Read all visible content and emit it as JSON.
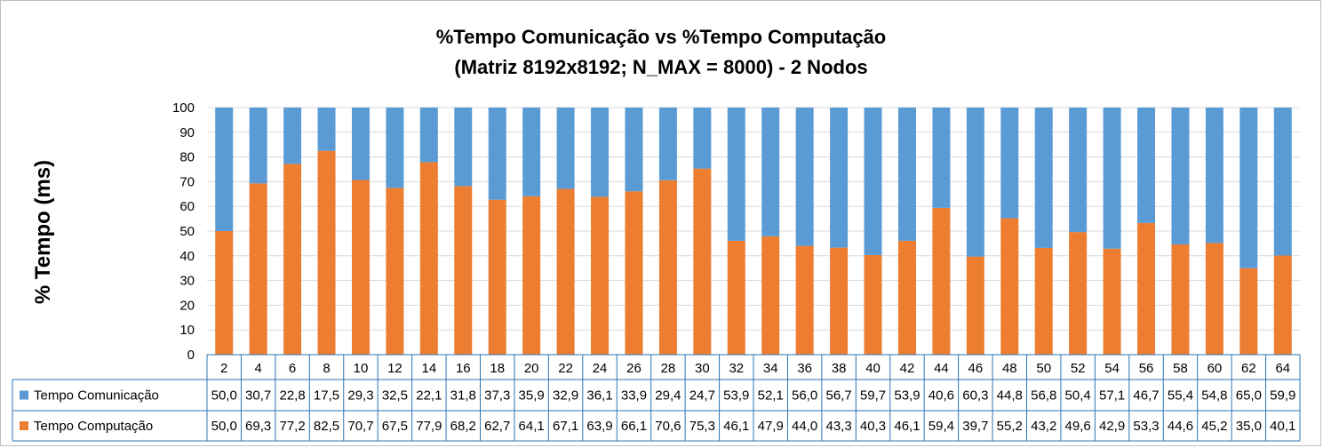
{
  "chart_data": {
    "type": "bar",
    "stacked": true,
    "title_line1": "%Tempo Comunicação vs %Tempo Computação",
    "title_line2": "(Matriz 8192x8192; N_MAX = 8000) - 2 Nodos",
    "ylabel": "% Tempo (ms)",
    "ylim": [
      0,
      100
    ],
    "yticks": [
      0,
      10,
      20,
      30,
      40,
      50,
      60,
      70,
      80,
      90,
      100
    ],
    "grid": true,
    "legend_placement": "data-table",
    "categories": [
      "2",
      "4",
      "6",
      "8",
      "10",
      "12",
      "14",
      "16",
      "18",
      "20",
      "22",
      "24",
      "26",
      "28",
      "30",
      "32",
      "34",
      "36",
      "38",
      "40",
      "42",
      "44",
      "46",
      "48",
      "50",
      "52",
      "54",
      "56",
      "58",
      "60",
      "62",
      "64"
    ],
    "series": [
      {
        "name": "Tempo Comunicação",
        "color": "#5b9bd5",
        "values": [
          50.0,
          30.7,
          22.8,
          17.5,
          29.3,
          32.5,
          22.1,
          31.8,
          37.3,
          35.9,
          32.9,
          36.1,
          33.9,
          29.4,
          24.7,
          53.9,
          52.1,
          56.0,
          56.7,
          59.7,
          53.9,
          40.6,
          60.3,
          44.8,
          56.8,
          50.4,
          57.1,
          46.7,
          55.4,
          54.8,
          65.0,
          59.9
        ],
        "labels": [
          "50,0",
          "30,7",
          "22,8",
          "17,5",
          "29,3",
          "32,5",
          "22,1",
          "31,8",
          "37,3",
          "35,9",
          "32,9",
          "36,1",
          "33,9",
          "29,4",
          "24,7",
          "53,9",
          "52,1",
          "56,0",
          "56,7",
          "59,7",
          "53,9",
          "40,6",
          "60,3",
          "44,8",
          "56,8",
          "50,4",
          "57,1",
          "46,7",
          "55,4",
          "54,8",
          "65,0",
          "59,9"
        ]
      },
      {
        "name": "Tempo Computação",
        "color": "#ed7d31",
        "values": [
          50.0,
          69.3,
          77.2,
          82.5,
          70.7,
          67.5,
          77.9,
          68.2,
          62.7,
          64.1,
          67.1,
          63.9,
          66.1,
          70.6,
          75.3,
          46.1,
          47.9,
          44.0,
          43.3,
          40.3,
          46.1,
          59.4,
          39.7,
          55.2,
          43.2,
          49.6,
          42.9,
          53.3,
          44.6,
          45.2,
          35.0,
          40.1
        ],
        "labels": [
          "50,0",
          "69,3",
          "77,2",
          "82,5",
          "70,7",
          "67,5",
          "77,9",
          "68,2",
          "62,7",
          "64,1",
          "67,1",
          "63,9",
          "66,1",
          "70,6",
          "75,3",
          "46,1",
          "47,9",
          "44,0",
          "43,3",
          "40,3",
          "46,1",
          "59,4",
          "39,7",
          "55,2",
          "43,2",
          "49,6",
          "42,9",
          "53,3",
          "44,6",
          "45,2",
          "35,0",
          "40,1"
        ]
      }
    ]
  }
}
